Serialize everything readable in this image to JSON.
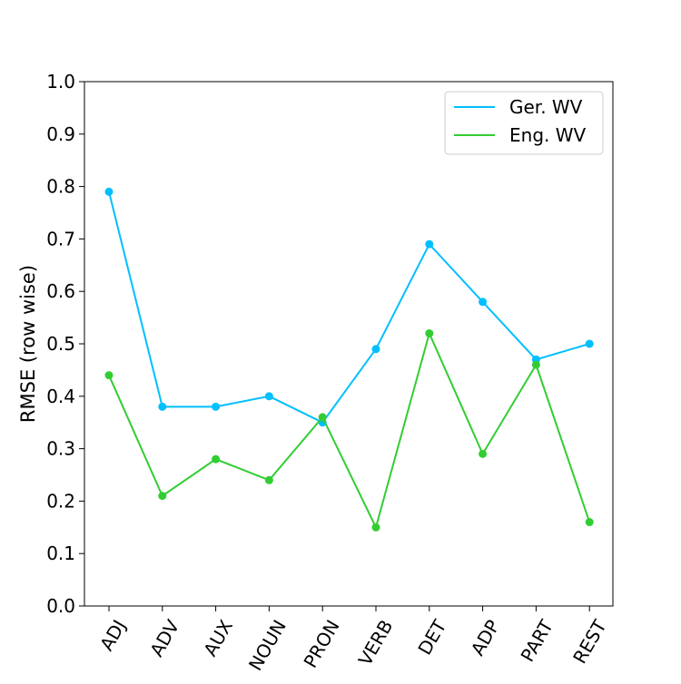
{
  "chart_data": {
    "type": "line",
    "title": "",
    "xlabel": "",
    "ylabel": "RMSE (row wise)",
    "categories": [
      "ADJ",
      "ADV",
      "AUX",
      "NOUN",
      "PRON",
      "VERB",
      "DET",
      "ADP",
      "PART",
      "REST"
    ],
    "ylim": [
      0.0,
      1.0
    ],
    "yticks": [
      "0.0",
      "0.1",
      "0.2",
      "0.3",
      "0.4",
      "0.5",
      "0.6",
      "0.7",
      "0.8",
      "0.9",
      "1.0"
    ],
    "grid": false,
    "legend_position": "top-right",
    "series": [
      {
        "name": "Ger. WV",
        "color": "#00bfff",
        "values": [
          0.79,
          0.38,
          0.38,
          0.4,
          0.35,
          0.49,
          0.69,
          0.58,
          0.47,
          0.5
        ]
      },
      {
        "name": "Eng. WV",
        "color": "#32cd32",
        "values": [
          0.44,
          0.21,
          0.28,
          0.24,
          0.36,
          0.15,
          0.52,
          0.29,
          0.46,
          0.16
        ]
      }
    ]
  }
}
